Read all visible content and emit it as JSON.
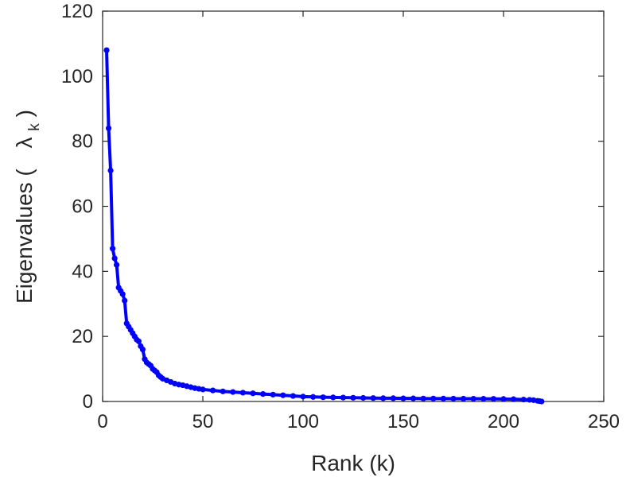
{
  "chart_data": {
    "type": "line",
    "title": "",
    "xlabel": "Rank (k)",
    "ylabel": {
      "prefix": "Eigenvalues (",
      "symbol": "λ",
      "subscript": "k",
      "suffix": ")"
    },
    "xlim": [
      0,
      250
    ],
    "ylim": [
      0,
      120
    ],
    "xticks": [
      "0",
      "50",
      "100",
      "150",
      "200",
      "250"
    ],
    "yticks": [
      "0",
      "20",
      "40",
      "60",
      "80",
      "100",
      "120"
    ],
    "xtick_values": [
      0,
      50,
      100,
      150,
      200,
      250
    ],
    "ytick_values": [
      0,
      20,
      40,
      60,
      80,
      100,
      120
    ],
    "grid": false,
    "legend": "none",
    "series": [
      {
        "color": "#0000ff",
        "marker": "circle",
        "x": [
          2,
          3,
          4,
          5,
          6,
          7,
          8,
          9,
          10,
          11,
          12,
          13,
          14,
          15,
          16,
          17,
          18,
          19,
          20,
          21,
          22,
          23,
          24,
          25,
          26,
          27,
          28,
          29,
          30,
          32,
          34,
          36,
          38,
          40,
          42,
          44,
          46,
          48,
          50,
          55,
          60,
          65,
          70,
          75,
          80,
          85,
          90,
          95,
          100,
          105,
          110,
          115,
          120,
          125,
          130,
          135,
          140,
          145,
          150,
          155,
          160,
          165,
          170,
          175,
          180,
          185,
          190,
          195,
          200,
          205,
          210,
          213,
          215,
          217,
          218,
          219
        ],
        "y": [
          108,
          84,
          71,
          47,
          44,
          42,
          35,
          34,
          33,
          31,
          24,
          23,
          22,
          21,
          20,
          19,
          18.5,
          17,
          16,
          13,
          12,
          11.5,
          11,
          10,
          9.5,
          9,
          8,
          7.5,
          7,
          6.5,
          6,
          5.5,
          5.2,
          5,
          4.7,
          4.4,
          4.1,
          3.9,
          3.7,
          3.4,
          3.1,
          2.9,
          2.7,
          2.5,
          2.3,
          2.1,
          1.9,
          1.7,
          1.5,
          1.4,
          1.3,
          1.25,
          1.2,
          1.15,
          1.1,
          1.05,
          1.0,
          1.0,
          0.95,
          0.95,
          0.9,
          0.9,
          0.88,
          0.86,
          0.85,
          0.84,
          0.82,
          0.8,
          0.75,
          0.7,
          0.6,
          0.5,
          0.4,
          0.2,
          0.1,
          0.0
        ]
      }
    ]
  }
}
